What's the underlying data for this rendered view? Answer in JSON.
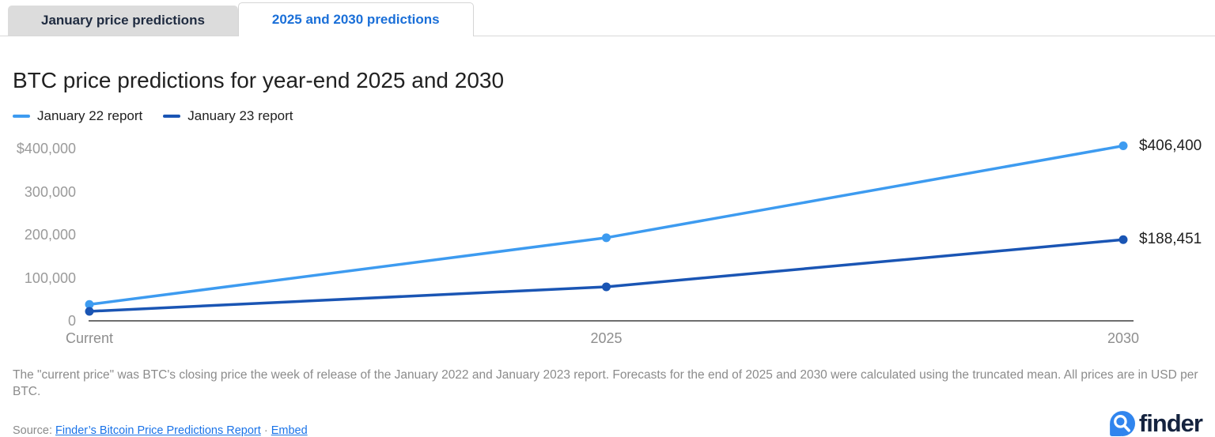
{
  "tabs": [
    {
      "label": "January price predictions",
      "active": false
    },
    {
      "label": "2025 and 2030 predictions",
      "active": true
    }
  ],
  "title": "BTC price predictions for year-end 2025 and 2030",
  "chart_data": {
    "type": "line",
    "categories": [
      "Current",
      "2025",
      "2030"
    ],
    "series": [
      {
        "name": "January 22 report",
        "color": "#3d9bf0",
        "values": [
          38000,
          193000,
          406400
        ],
        "end_label": "$406,400"
      },
      {
        "name": "January 23 report",
        "color": "#1a55b4",
        "values": [
          22000,
          79000,
          188451
        ],
        "end_label": "$188,451"
      }
    ],
    "ylim": [
      0,
      400000
    ],
    "yticks": [
      {
        "value": 400000,
        "label": "$400,000"
      },
      {
        "value": 300000,
        "label": "300,000"
      },
      {
        "value": 200000,
        "label": "200,000"
      },
      {
        "value": 100000,
        "label": "100,000"
      },
      {
        "value": 0,
        "label": "0"
      }
    ],
    "grid": false,
    "legend_position": "top-left",
    "axis_color": "#6e6e6e"
  },
  "footnote": "The \"current price\" was BTC's closing price the week of release of the January 2022 and January 2023 report. Forecasts for the end of 2025 and 2030 were calculated using the truncated mean. All prices are in USD per BTC.",
  "source": {
    "prefix": "Source:",
    "report_link": "Finder’s Bitcoin Price Predictions Report",
    "separator": "·",
    "embed_link": "Embed"
  },
  "brand": {
    "name": "finder",
    "icon_color": "#3085ee",
    "text_color": "#15233f"
  }
}
